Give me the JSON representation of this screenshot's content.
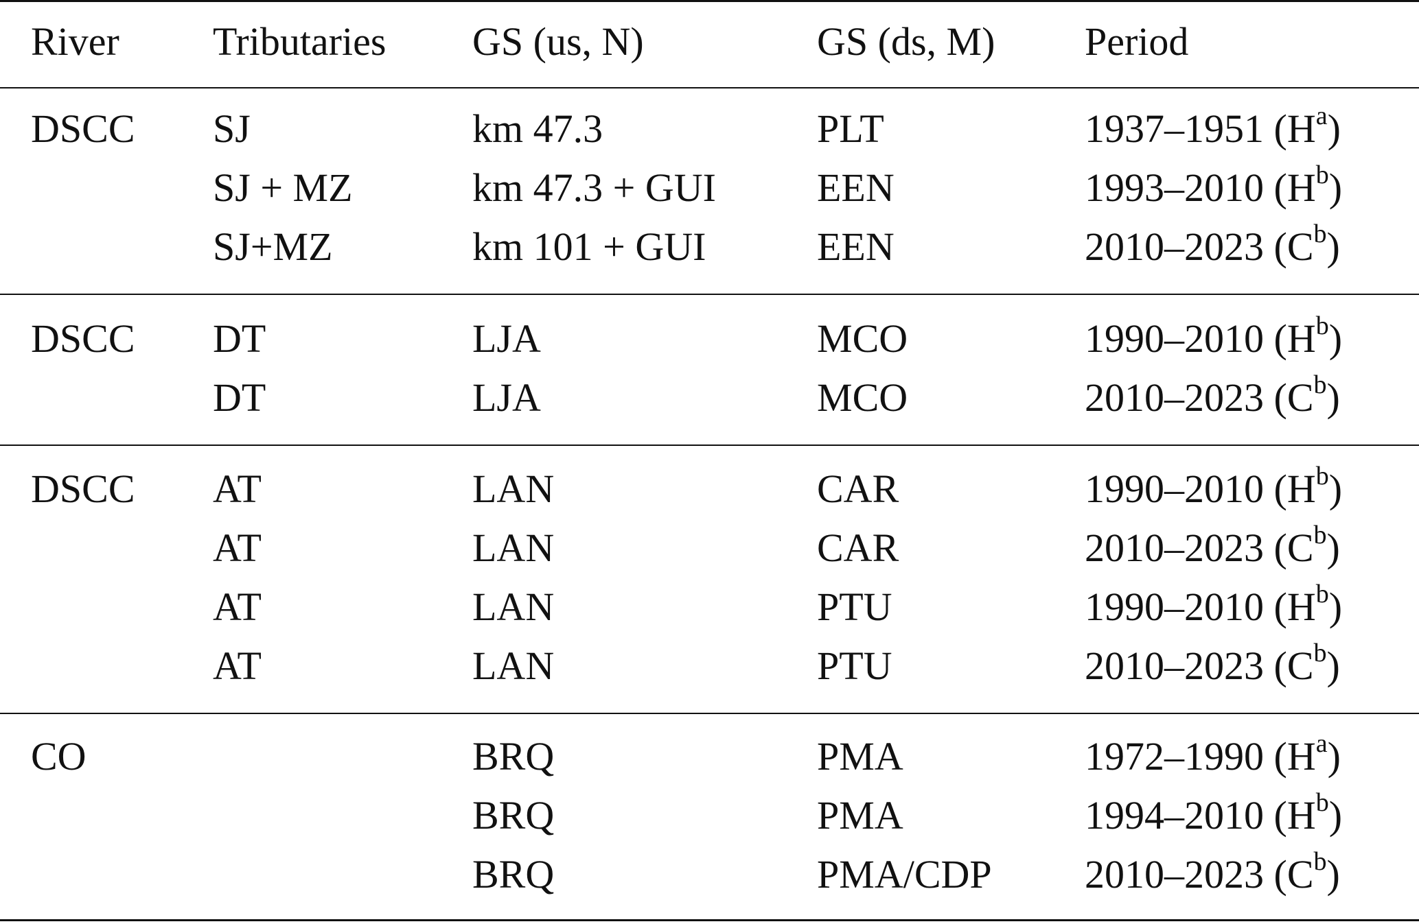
{
  "header": [
    "River",
    "Tributaries",
    "GS (us, N)",
    "GS (ds, M)",
    "Period"
  ],
  "rows": [
    {
      "river": "DSCC",
      "trib": "SJ",
      "us": "km 47.3",
      "ds": "PLT",
      "period": "1937–1951 (H",
      "sup": "a",
      "close": ")"
    },
    {
      "river": "",
      "trib": "SJ + MZ",
      "us": "km 47.3 + GUI",
      "ds": "EEN",
      "period": "1993–2010 (H",
      "sup": "b",
      "close": ")"
    },
    {
      "river": "",
      "trib": "SJ+MZ",
      "us": "km 101 + GUI",
      "ds": "EEN",
      "period": "2010–2023 (C",
      "sup": "b",
      "close": ")"
    },
    {
      "river": "DSCC",
      "trib": "DT",
      "us": "LJA",
      "ds": "MCO",
      "period": "1990–2010 (H",
      "sup": "b",
      "close": ")"
    },
    {
      "river": "",
      "trib": "DT",
      "us": "LJA",
      "ds": "MCO",
      "period": "2010–2023 (C",
      "sup": "b",
      "close": ")"
    },
    {
      "river": "DSCC",
      "trib": "AT",
      "us": "LAN",
      "ds": "CAR",
      "period": "1990–2010 (H",
      "sup": "b",
      "close": ")"
    },
    {
      "river": "",
      "trib": "AT",
      "us": "LAN",
      "ds": "CAR",
      "period": "2010–2023 (C",
      "sup": "b",
      "close": ")"
    },
    {
      "river": "",
      "trib": "AT",
      "us": "LAN",
      "ds": "PTU",
      "period": "1990–2010 (H",
      "sup": "b",
      "close": ")"
    },
    {
      "river": "",
      "trib": "AT",
      "us": "LAN",
      "ds": "PTU",
      "period": "2010–2023 (C",
      "sup": "b",
      "close": ")"
    },
    {
      "river": "CO",
      "trib": "",
      "us": "BRQ",
      "ds": "PMA",
      "period": "1972–1990 (H",
      "sup": "a",
      "close": ")"
    },
    {
      "river": "",
      "trib": "",
      "us": "BRQ",
      "ds": "PMA",
      "period": "1994–2010 (H",
      "sup": "b",
      "close": ")"
    },
    {
      "river": "",
      "trib": "",
      "us": "BRQ",
      "ds": "PMA/CDP",
      "period": "2010–2023 (C",
      "sup": "b",
      "close": ")"
    }
  ]
}
